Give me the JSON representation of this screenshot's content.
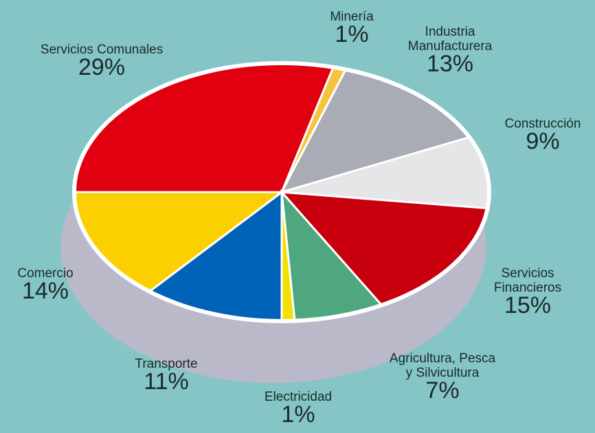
{
  "chart_data": {
    "type": "pie",
    "categories": [
      "Servicios  Comunales",
      "Minería",
      "Industria\nManufacturera",
      "Construcción",
      "Servicios\nFinancieros",
      "Agricultura,  Pesca\ny  Silvicultura",
      "Electricidad",
      "Transporte",
      "Comercio"
    ],
    "values": [
      29,
      1,
      13,
      9,
      15,
      7,
      1,
      11,
      14
    ],
    "value_labels": [
      "29%",
      "1%",
      "13%",
      "9%",
      "15%",
      "7%",
      "1%",
      "11%",
      "14%"
    ],
    "colors": [
      "#e0000f",
      "#f6c340",
      "#a9acb5",
      "#e6e6e8",
      "#c8000e",
      "#4fa77f",
      "#f3e000",
      "#0063b8",
      "#fcd000"
    ]
  }
}
